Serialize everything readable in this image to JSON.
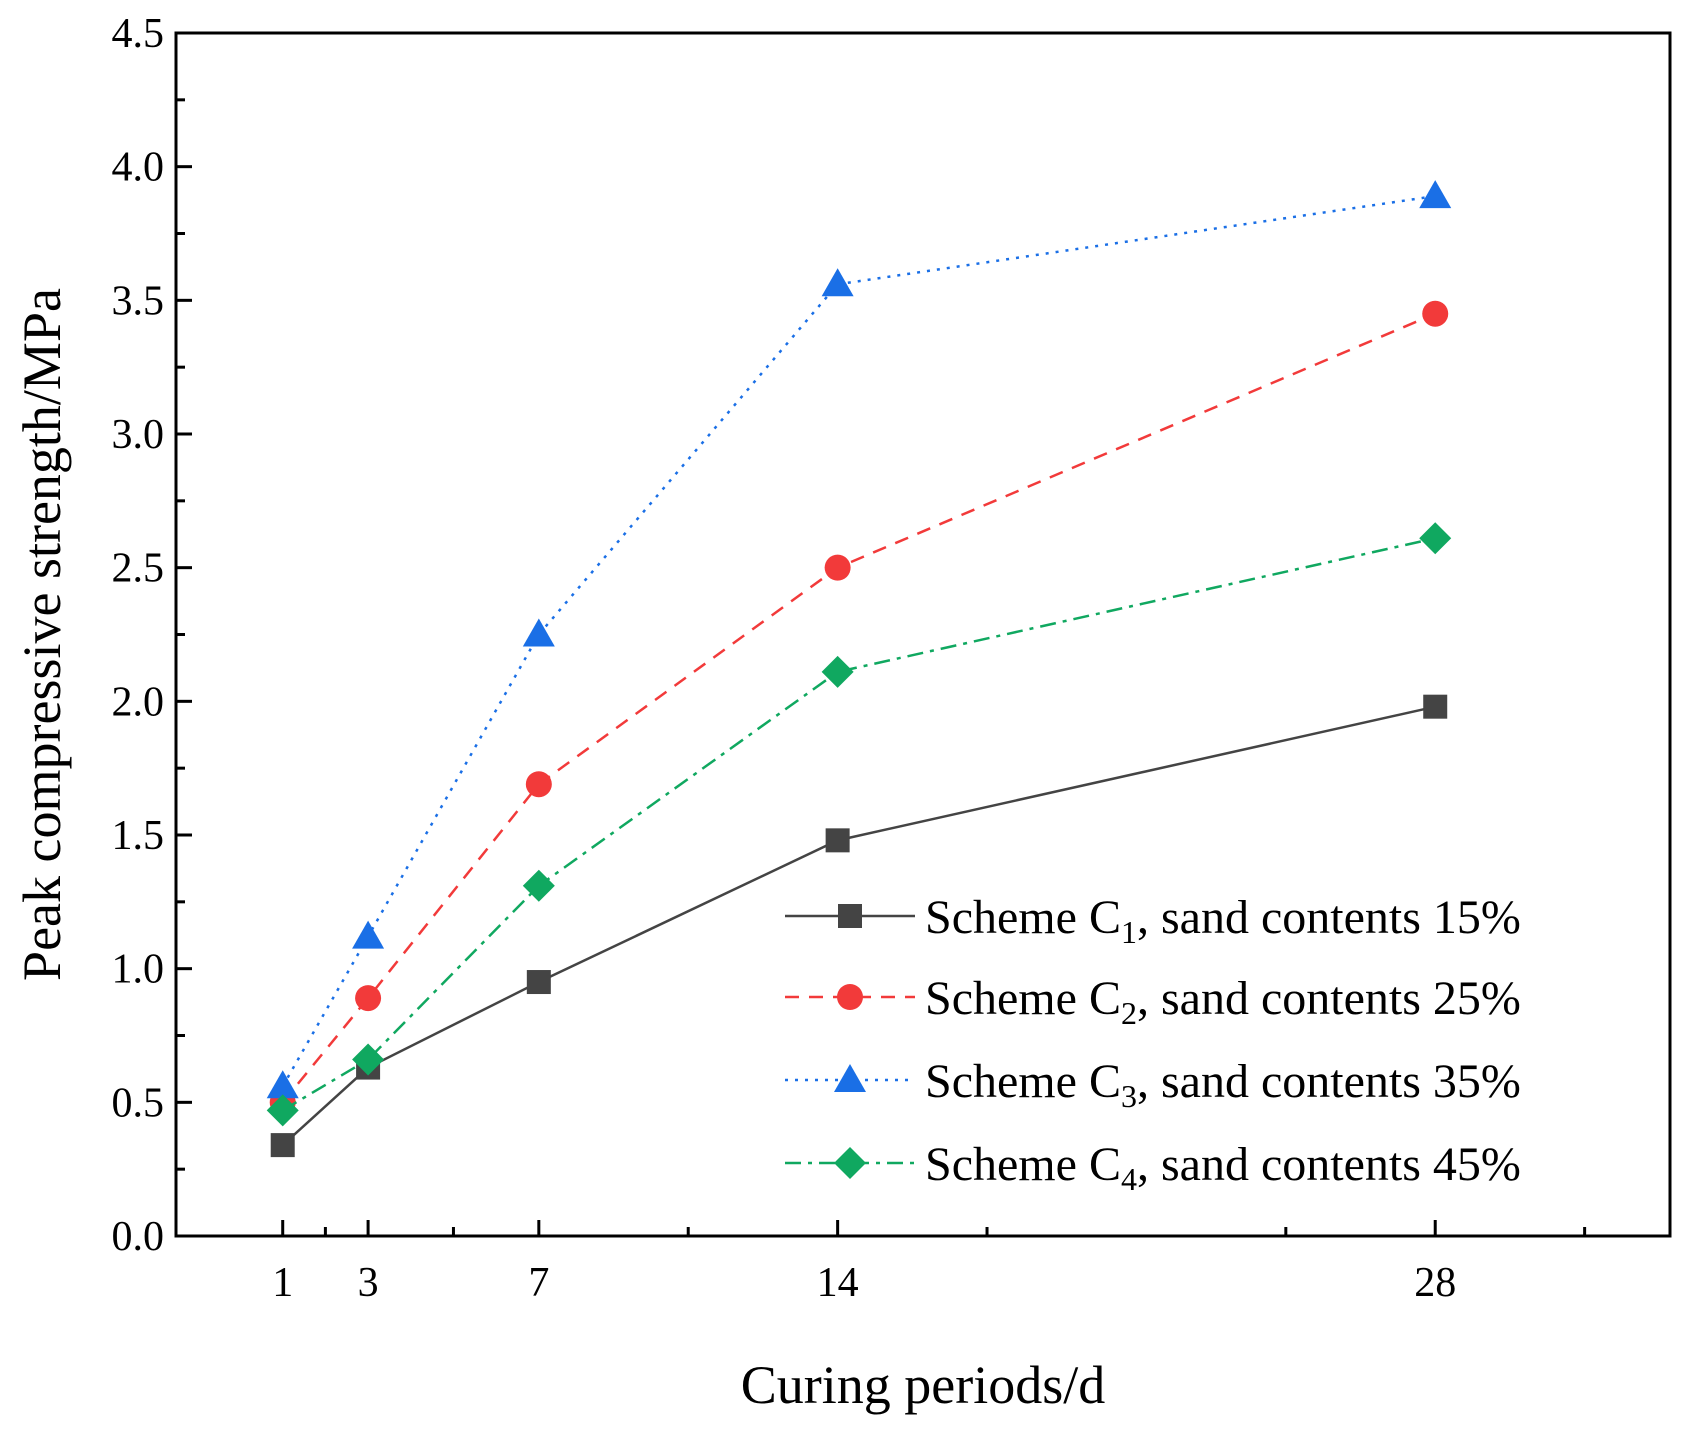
{
  "chart_data": {
    "type": "line",
    "title": "",
    "xlabel": "Curing periods/d",
    "ylabel": "Peak compressive strength/MPa",
    "xlim": [
      -1.5,
      33.5
    ],
    "ylim": [
      0,
      4.5
    ],
    "x_ticks": [
      1,
      3,
      7,
      14,
      28
    ],
    "x_minor_ticks": [
      2,
      5,
      10.5,
      17.5,
      24.5,
      31.5
    ],
    "y_ticks": [
      "0.0",
      "0.5",
      "1.0",
      "1.5",
      "2.0",
      "2.5",
      "3.0",
      "3.5",
      "4.0",
      "4.5"
    ],
    "x": [
      1,
      3,
      7,
      14,
      28
    ],
    "legend_position": "lower-right",
    "series": [
      {
        "id": "c1",
        "name_prefix": "Scheme C",
        "subscript": "1",
        "name_suffix": ", sand contents 15%",
        "color": "#444444",
        "marker": "square",
        "line_style": "solid",
        "values": [
          0.34,
          0.63,
          0.95,
          1.48,
          1.98
        ]
      },
      {
        "id": "c2",
        "name_prefix": "Scheme C",
        "subscript": "2",
        "name_suffix": ", sand contents 25%",
        "color": "#f23a3a",
        "marker": "circle",
        "line_style": "dashed",
        "values": [
          0.5,
          0.89,
          1.69,
          2.5,
          3.45
        ]
      },
      {
        "id": "c3",
        "name_prefix": "Scheme C",
        "subscript": "3",
        "name_suffix": ", sand contents 35%",
        "color": "#1a6fe6",
        "marker": "triangle",
        "line_style": "dotted",
        "values": [
          0.56,
          1.12,
          2.25,
          3.56,
          3.89
        ]
      },
      {
        "id": "c4",
        "name_prefix": "Scheme C",
        "subscript": "4",
        "name_suffix": ", sand contents 45%",
        "color": "#10a860",
        "marker": "diamond",
        "line_style": "dashdot",
        "values": [
          0.47,
          0.66,
          1.31,
          2.11,
          2.61
        ]
      }
    ]
  }
}
